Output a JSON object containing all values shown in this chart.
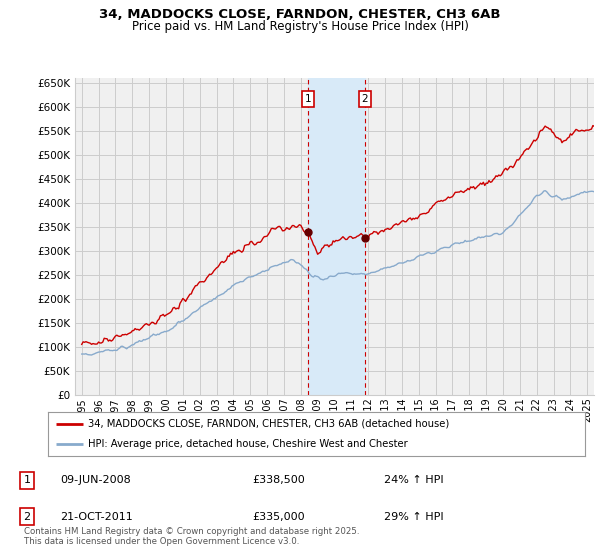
{
  "title_line1": "34, MADDOCKS CLOSE, FARNDON, CHESTER, CH3 6AB",
  "title_line2": "Price paid vs. HM Land Registry's House Price Index (HPI)",
  "legend_line1": "34, MADDOCKS CLOSE, FARNDON, CHESTER, CH3 6AB (detached house)",
  "legend_line2": "HPI: Average price, detached house, Cheshire West and Chester",
  "footer": "Contains HM Land Registry data © Crown copyright and database right 2025.\nThis data is licensed under the Open Government Licence v3.0.",
  "annotation1": {
    "label": "1",
    "date": "09-JUN-2008",
    "price": "£338,500",
    "hpi": "24% ↑ HPI",
    "x": 2008.44
  },
  "annotation2": {
    "label": "2",
    "date": "21-OCT-2011",
    "price": "£335,000",
    "hpi": "29% ↑ HPI",
    "x": 2011.8
  },
  "red_color": "#cc0000",
  "blue_color": "#88aacc",
  "grid_color": "#cccccc",
  "bg_color": "#ffffff",
  "plot_bg_color": "#f0f0f0",
  "shade_color": "#d8eaf8",
  "ylim": [
    0,
    660000
  ],
  "yticks": [
    0,
    50000,
    100000,
    150000,
    200000,
    250000,
    300000,
    350000,
    400000,
    450000,
    500000,
    550000,
    600000,
    650000
  ],
  "xlim": [
    1994.6,
    2025.4
  ],
  "xticks": [
    1995,
    1996,
    1997,
    1998,
    1999,
    2000,
    2001,
    2002,
    2003,
    2004,
    2005,
    2006,
    2007,
    2008,
    2009,
    2010,
    2011,
    2012,
    2013,
    2014,
    2015,
    2016,
    2017,
    2018,
    2019,
    2020,
    2021,
    2022,
    2023,
    2024,
    2025
  ]
}
